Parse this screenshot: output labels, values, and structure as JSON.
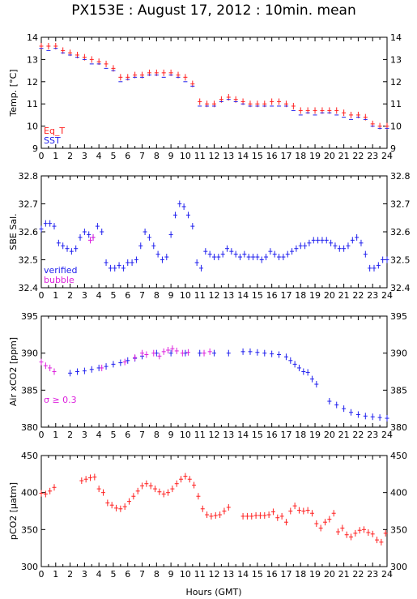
{
  "title": "PX153E : August 17, 2012 : 10min. mean",
  "xlabel": "Hours (GMT)",
  "colors": {
    "red": "#ff2020",
    "blue": "#2020ee",
    "magenta": "#dd22dd",
    "axis": "#000000"
  },
  "chart_data": [
    {
      "type": "scatter",
      "ylabel": "Temp. [°C]",
      "xlim": [
        0,
        24
      ],
      "ylim": [
        9,
        14
      ],
      "xticks": [
        0,
        1,
        2,
        3,
        4,
        5,
        6,
        7,
        8,
        9,
        10,
        11,
        12,
        13,
        14,
        15,
        16,
        17,
        18,
        19,
        20,
        21,
        22,
        23,
        24
      ],
      "yticks": [
        9,
        10,
        11,
        12,
        13,
        14
      ],
      "legend": [
        {
          "label": "Eq_T",
          "color": "red"
        },
        {
          "label": "SST",
          "color": "blue"
        }
      ],
      "legend_placement": "bottom-left",
      "series": [
        {
          "name": "Eq_T",
          "color": "red",
          "error_bars": true,
          "x": [
            0.0,
            0.5,
            1.0,
            1.5,
            2.0,
            2.5,
            3.0,
            3.5,
            4.0,
            4.5,
            5.0,
            5.5,
            6.0,
            6.5,
            7.0,
            7.5,
            8.0,
            8.5,
            9.0,
            9.5,
            10.0,
            10.5,
            11.0,
            11.5,
            12.0,
            12.5,
            13.0,
            13.5,
            14.0,
            14.5,
            15.0,
            15.5,
            16.0,
            16.5,
            17.0,
            17.5,
            18.0,
            18.5,
            19.0,
            19.5,
            20.0,
            20.5,
            21.0,
            21.5,
            22.0,
            22.5,
            23.0,
            23.5,
            24.0
          ],
          "y": [
            13.6,
            13.6,
            13.6,
            13.4,
            13.3,
            13.2,
            13.1,
            13.0,
            12.9,
            12.8,
            12.6,
            12.2,
            12.2,
            12.3,
            12.3,
            12.4,
            12.4,
            12.4,
            12.4,
            12.3,
            12.2,
            11.9,
            11.1,
            11.0,
            11.0,
            11.2,
            11.3,
            11.2,
            11.1,
            11.0,
            11.0,
            11.0,
            11.1,
            11.1,
            11.0,
            10.9,
            10.7,
            10.7,
            10.7,
            10.7,
            10.7,
            10.7,
            10.6,
            10.5,
            10.5,
            10.4,
            10.1,
            10.0,
            10.0
          ]
        },
        {
          "name": "SST",
          "color": "blue",
          "error_bars": false,
          "x": [
            0.0,
            0.5,
            1.0,
            1.5,
            2.0,
            2.5,
            3.0,
            3.5,
            4.0,
            4.5,
            5.0,
            5.5,
            6.0,
            6.5,
            7.0,
            7.5,
            8.0,
            8.5,
            9.0,
            9.5,
            10.0,
            10.5,
            11.0,
            11.5,
            12.0,
            12.5,
            13.0,
            13.5,
            14.0,
            14.5,
            15.0,
            15.5,
            16.0,
            16.5,
            17.0,
            17.5,
            18.0,
            18.5,
            19.0,
            19.5,
            20.0,
            20.5,
            21.0,
            21.5,
            22.0,
            22.5,
            23.0,
            23.5,
            24.0
          ],
          "y": [
            13.5,
            13.4,
            13.5,
            13.3,
            13.2,
            13.1,
            13.0,
            12.8,
            12.8,
            12.6,
            12.5,
            12.0,
            12.1,
            12.2,
            12.2,
            12.3,
            12.3,
            12.2,
            12.3,
            12.2,
            12.0,
            11.8,
            10.9,
            10.9,
            10.9,
            11.1,
            11.2,
            11.1,
            11.0,
            10.9,
            10.9,
            10.9,
            10.9,
            10.9,
            10.9,
            10.7,
            10.5,
            10.6,
            10.5,
            10.6,
            10.6,
            10.5,
            10.4,
            10.3,
            10.4,
            10.3,
            10.0,
            9.9,
            9.9
          ]
        }
      ]
    },
    {
      "type": "scatter",
      "ylabel": "SBE Sal.",
      "xlim": [
        0,
        24
      ],
      "ylim": [
        32.4,
        32.8
      ],
      "xticks": [
        0,
        1,
        2,
        3,
        4,
        5,
        6,
        7,
        8,
        9,
        10,
        11,
        12,
        13,
        14,
        15,
        16,
        17,
        18,
        19,
        20,
        21,
        22,
        23,
        24
      ],
      "yticks": [
        32.4,
        32.5,
        32.6,
        32.7,
        32.8
      ],
      "legend": [
        {
          "label": "verified",
          "color": "blue"
        },
        {
          "label": "bubble",
          "color": "magenta"
        }
      ],
      "legend_placement": "bottom-left",
      "series": [
        {
          "name": "verified",
          "color": "blue",
          "error_bars": true,
          "x": [
            0.0,
            0.3,
            0.6,
            0.9,
            1.2,
            1.5,
            1.8,
            2.1,
            2.4,
            2.7,
            3.0,
            3.3,
            3.6,
            3.9,
            4.2,
            4.5,
            4.8,
            5.1,
            5.4,
            5.7,
            6.0,
            6.3,
            6.6,
            6.9,
            7.2,
            7.5,
            7.8,
            8.1,
            8.4,
            8.7,
            9.0,
            9.3,
            9.6,
            9.9,
            10.2,
            10.5,
            10.8,
            11.1,
            11.4,
            11.7,
            12.0,
            12.3,
            12.6,
            12.9,
            13.2,
            13.5,
            13.8,
            14.1,
            14.4,
            14.7,
            15.0,
            15.3,
            15.6,
            15.9,
            16.2,
            16.5,
            16.8,
            17.1,
            17.4,
            17.7,
            18.0,
            18.3,
            18.6,
            18.9,
            19.2,
            19.5,
            19.8,
            20.1,
            20.4,
            20.7,
            21.0,
            21.3,
            21.6,
            21.9,
            22.2,
            22.5,
            22.8,
            23.1,
            23.4,
            23.7,
            24.0
          ],
          "y": [
            32.61,
            32.63,
            32.63,
            32.62,
            32.56,
            32.55,
            32.54,
            32.53,
            32.54,
            32.58,
            32.6,
            32.59,
            32.58,
            32.62,
            32.6,
            32.49,
            32.47,
            32.47,
            32.48,
            32.47,
            32.49,
            32.49,
            32.5,
            32.55,
            32.6,
            32.58,
            32.55,
            32.52,
            32.5,
            32.51,
            32.59,
            32.66,
            32.7,
            32.69,
            32.66,
            32.62,
            32.49,
            32.47,
            32.53,
            32.52,
            32.51,
            32.51,
            32.52,
            32.54,
            32.53,
            32.52,
            32.51,
            32.52,
            32.51,
            32.51,
            32.51,
            32.5,
            32.51,
            32.53,
            32.52,
            32.51,
            32.51,
            32.52,
            32.53,
            32.54,
            32.55,
            32.55,
            32.56,
            32.57,
            32.57,
            32.57,
            32.57,
            32.56,
            32.55,
            32.54,
            32.54,
            32.55,
            32.57,
            32.58,
            32.56,
            32.52,
            32.47,
            32.47,
            32.48,
            32.5,
            32.5
          ]
        },
        {
          "name": "bubble",
          "color": "magenta",
          "error_bars": true,
          "x": [
            3.4,
            3.6
          ],
          "y": [
            32.57,
            32.58
          ]
        }
      ]
    },
    {
      "type": "scatter",
      "ylabel": "Air xCO2 [ppm]",
      "xlim": [
        0,
        24
      ],
      "ylim": [
        380,
        395
      ],
      "xticks": [
        0,
        1,
        2,
        3,
        4,
        5,
        6,
        7,
        8,
        9,
        10,
        11,
        12,
        13,
        14,
        15,
        16,
        17,
        18,
        19,
        20,
        21,
        22,
        23,
        24
      ],
      "yticks": [
        380,
        385,
        390,
        395
      ],
      "annotations": [
        "σ ≥ 0.3"
      ],
      "series": [
        {
          "name": "",
          "color": "blue",
          "error_bars": true,
          "x": [
            2.0,
            2.5,
            3.0,
            3.5,
            4.0,
            4.5,
            5.0,
            5.5,
            6.0,
            6.5,
            7.0,
            8.0,
            9.0,
            10.0,
            11.0,
            12.0,
            13.0,
            14.0,
            14.5,
            15.0,
            15.5,
            16.0,
            16.5,
            17.0,
            17.3,
            17.6,
            17.9,
            18.2,
            18.5,
            18.8,
            19.1,
            20.0,
            20.5,
            21.0,
            21.5,
            22.0,
            22.5,
            23.0,
            23.5,
            24.0
          ],
          "y": [
            387.3,
            387.5,
            387.6,
            387.8,
            388.0,
            388.2,
            388.5,
            388.7,
            389.0,
            389.3,
            389.6,
            390.0,
            390.0,
            390.0,
            390.0,
            390.0,
            390.0,
            390.2,
            390.2,
            390.1,
            390.0,
            389.9,
            389.8,
            389.5,
            389.0,
            388.5,
            388.0,
            387.5,
            387.4,
            386.5,
            385.8,
            383.5,
            383.0,
            382.5,
            382.0,
            381.7,
            381.5,
            381.4,
            381.3,
            381.2
          ]
        },
        {
          "name": "",
          "color": "magenta",
          "error_bars": true,
          "x": [
            0.0,
            0.3,
            0.6,
            0.9,
            4.2,
            5.8,
            6.5,
            7.0,
            7.3,
            7.8,
            8.2,
            8.5,
            8.8,
            9.1,
            9.4,
            9.8,
            10.2,
            11.3,
            11.7
          ],
          "y": [
            388.8,
            388.3,
            388.0,
            387.5,
            388.0,
            388.8,
            389.4,
            390.0,
            389.8,
            390.0,
            389.6,
            390.2,
            390.4,
            390.6,
            390.3,
            390.0,
            390.1,
            390.0,
            390.2
          ]
        }
      ]
    },
    {
      "type": "scatter",
      "ylabel": "pCO2 [µatm]",
      "xlim": [
        0,
        24
      ],
      "ylim": [
        300,
        450
      ],
      "xticks": [
        0,
        1,
        2,
        3,
        4,
        5,
        6,
        7,
        8,
        9,
        10,
        11,
        12,
        13,
        14,
        15,
        16,
        17,
        18,
        19,
        20,
        21,
        22,
        23,
        24
      ],
      "yticks": [
        300,
        350,
        400,
        450
      ],
      "series": [
        {
          "name": "",
          "color": "red",
          "error_bars": true,
          "x": [
            0.0,
            0.3,
            0.6,
            0.9,
            2.8,
            3.1,
            3.4,
            3.7,
            4.0,
            4.3,
            4.6,
            4.9,
            5.2,
            5.5,
            5.8,
            6.1,
            6.4,
            6.7,
            7.0,
            7.3,
            7.6,
            7.9,
            8.2,
            8.5,
            8.8,
            9.1,
            9.4,
            9.7,
            10.0,
            10.3,
            10.6,
            10.9,
            11.2,
            11.5,
            11.8,
            12.1,
            12.4,
            12.7,
            13.0,
            14.0,
            14.3,
            14.6,
            14.9,
            15.2,
            15.5,
            15.8,
            16.1,
            16.4,
            16.7,
            17.0,
            17.3,
            17.6,
            17.9,
            18.2,
            18.5,
            18.8,
            19.1,
            19.4,
            19.7,
            20.0,
            20.3,
            20.6,
            20.9,
            21.2,
            21.5,
            21.8,
            22.1,
            22.4,
            22.7,
            23.0,
            23.3,
            23.6,
            23.9
          ],
          "y": [
            399,
            398,
            402,
            407,
            416,
            418,
            420,
            421,
            405,
            400,
            386,
            383,
            379,
            378,
            381,
            388,
            395,
            402,
            409,
            412,
            409,
            405,
            401,
            398,
            400,
            405,
            412,
            418,
            422,
            418,
            410,
            395,
            378,
            370,
            368,
            369,
            370,
            375,
            380,
            368,
            368,
            368,
            369,
            369,
            369,
            370,
            374,
            366,
            368,
            360,
            375,
            382,
            376,
            375,
            376,
            372,
            358,
            352,
            360,
            364,
            372,
            347,
            352,
            343,
            340,
            345,
            349,
            350,
            346,
            344,
            336,
            333,
            345
          ]
        }
      ]
    }
  ]
}
